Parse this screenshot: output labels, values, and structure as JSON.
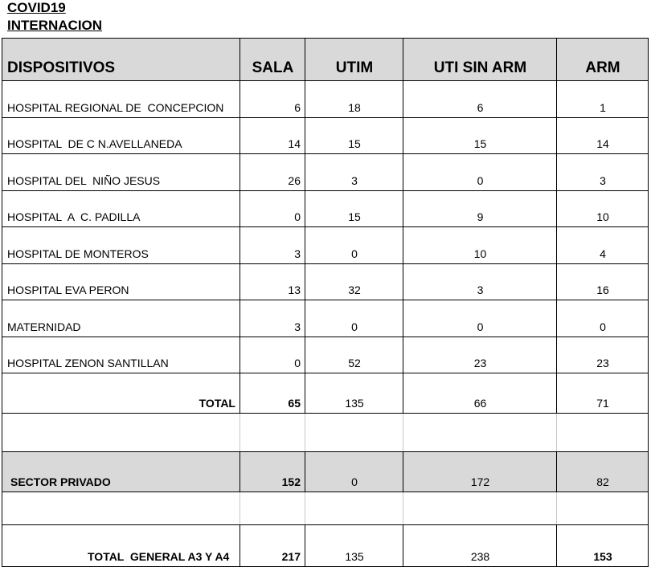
{
  "title": [
    "COVID19",
    "INTERNACION"
  ],
  "table": {
    "header": [
      "DISPOSITIVOS",
      "SALA",
      "UTIM",
      "UTI SIN ARM",
      "ARM"
    ],
    "rows": [
      [
        "HOSPITAL REGIONAL DE  CONCEPCION",
        6,
        18,
        6,
        1
      ],
      [
        "HOSPITAL  DE C N.AVELLANEDA",
        14,
        15,
        15,
        14
      ],
      [
        "HOSPITAL DEL  NIÑO JESUS",
        26,
        3,
        0,
        3
      ],
      [
        "HOSPITAL  A  C. PADILLA",
        0,
        15,
        9,
        10
      ],
      [
        "HOSPITAL DE MONTEROS",
        3,
        0,
        10,
        4
      ],
      [
        "HOSPITAL EVA PERON",
        13,
        32,
        3,
        16
      ],
      [
        "MATERNIDAD",
        3,
        0,
        0,
        0
      ],
      [
        "HOSPITAL ZENON SANTILLAN",
        0,
        52,
        23,
        23
      ]
    ],
    "total": [
      "TOTAL",
      65,
      135,
      66,
      71
    ],
    "private": [
      "SECTOR PRIVADO",
      152,
      0,
      172,
      82
    ],
    "grand_total": [
      "TOTAL  GENERAL A3 Y A4",
      217,
      135,
      238,
      153
    ]
  }
}
